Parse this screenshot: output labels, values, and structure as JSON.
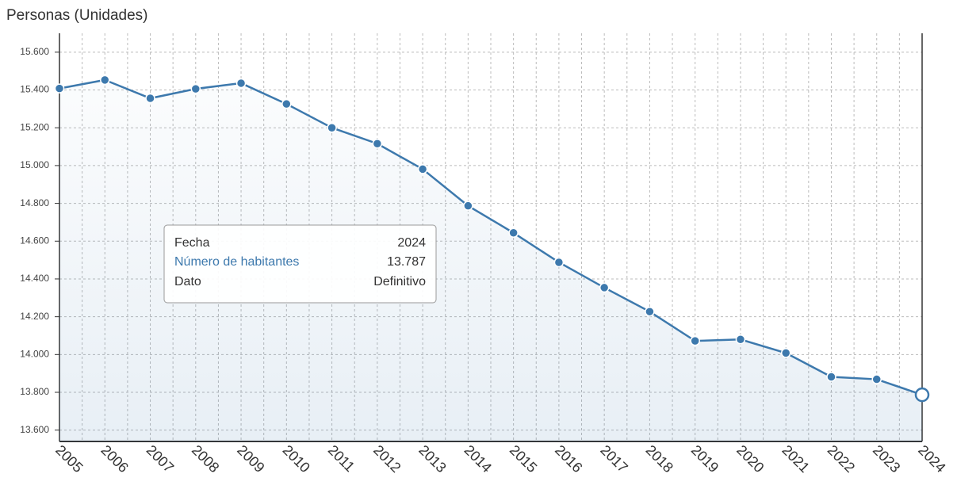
{
  "chart_data": {
    "type": "line",
    "title": "Personas (Unidades)",
    "categories": [
      "2005",
      "2006",
      "2007",
      "2008",
      "2009",
      "2010",
      "2011",
      "2012",
      "2013",
      "2014",
      "2015",
      "2016",
      "2017",
      "2018",
      "2019",
      "2020",
      "2021",
      "2022",
      "2023",
      "2024"
    ],
    "series": [
      {
        "name": "Número de habitantes",
        "color": "#3d79ad",
        "values": [
          15408,
          15453,
          15356,
          15406,
          15436,
          15326,
          15200,
          15116,
          14981,
          14787,
          14644,
          14488,
          14354,
          14227,
          14072,
          14080,
          14008,
          13882,
          13869,
          13787
        ]
      }
    ],
    "ylim": [
      13540,
      15700
    ],
    "yticks": [
      {
        "value": 13600,
        "label": "13.600"
      },
      {
        "value": 13800,
        "label": "13.800"
      },
      {
        "value": 14000,
        "label": "14.000"
      },
      {
        "value": 14200,
        "label": "14.200"
      },
      {
        "value": 14400,
        "label": "14.400"
      },
      {
        "value": 14600,
        "label": "14.600"
      },
      {
        "value": 14800,
        "label": "14.800"
      },
      {
        "value": 15000,
        "label": "15.000"
      },
      {
        "value": 15200,
        "label": "15.200"
      },
      {
        "value": 15400,
        "label": "15.400"
      },
      {
        "value": 15600,
        "label": "15.600"
      }
    ],
    "grid": true
  },
  "tooltip": {
    "date_label": "Fecha",
    "date": "2024",
    "value": "13.787",
    "status_label": "Dato",
    "status": "Definitivo"
  }
}
